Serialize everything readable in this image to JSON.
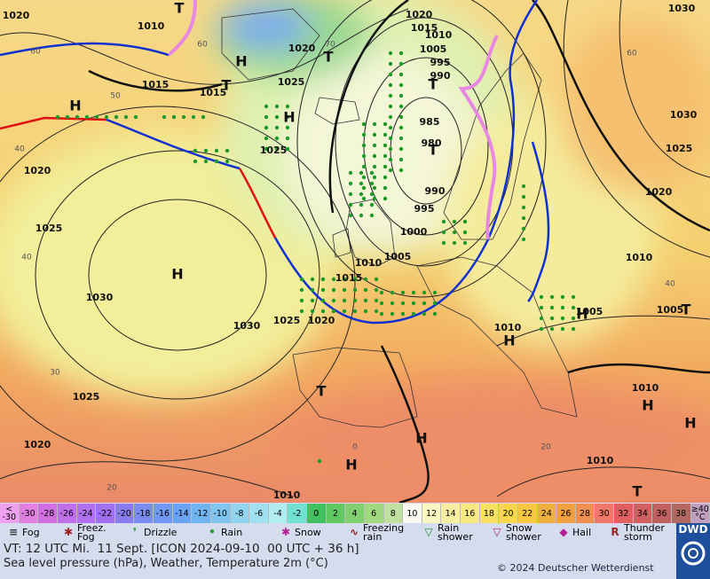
{
  "map": {
    "pressure_labels": [
      "1020",
      "1010",
      "1015",
      "1020",
      "1025",
      "1015",
      "1025",
      "1020",
      "1015",
      "1010",
      "1005",
      "995",
      "990",
      "985",
      "980",
      "990",
      "995",
      "1000",
      "1005",
      "1010",
      "1015",
      "1025",
      "1020",
      "1030",
      "1030",
      "1025",
      "1020",
      "1025",
      "1020",
      "1010",
      "1010",
      "1010",
      "1005",
      "1005",
      "1010",
      "1010",
      "1020",
      "1025",
      "1030",
      "1030"
    ],
    "temperature_labels": [
      "60",
      "50",
      "40",
      "40",
      "30",
      "20",
      "0",
      "20",
      "60",
      "70",
      "60",
      "40"
    ],
    "pressure_centers": [
      "H",
      "H",
      "H",
      "H",
      "H",
      "H",
      "H",
      "H",
      "H",
      "H",
      "T",
      "T",
      "T",
      "T",
      "T",
      "T",
      "T",
      "T"
    ]
  },
  "color_scale": [
    {
      "label": "< -30",
      "color": "#f0a0f0"
    },
    {
      "label": "-30",
      "color": "#e080e0"
    },
    {
      "label": "-28",
      "color": "#d070e0"
    },
    {
      "label": "-26",
      "color": "#c070e8"
    },
    {
      "label": "-24",
      "color": "#b070f0"
    },
    {
      "label": "-22",
      "color": "#a070f0"
    },
    {
      "label": "-20",
      "color": "#8a7cf0"
    },
    {
      "label": "-18",
      "color": "#7b8cf0"
    },
    {
      "label": "-16",
      "color": "#7098f0"
    },
    {
      "label": "-14",
      "color": "#6aa4f0"
    },
    {
      "label": "-12",
      "color": "#70b4f0"
    },
    {
      "label": "-10",
      "color": "#80c4f0"
    },
    {
      "label": "-8",
      "color": "#90d4f0"
    },
    {
      "label": "-6",
      "color": "#a0e0f0"
    },
    {
      "label": "-4",
      "color": "#b0ecf0"
    },
    {
      "label": "-2",
      "color": "#70e0d0"
    },
    {
      "label": "0",
      "color": "#40c060"
    },
    {
      "label": "2",
      "color": "#60c860"
    },
    {
      "label": "4",
      "color": "#80d070"
    },
    {
      "label": "6",
      "color": "#a0d880"
    },
    {
      "label": "8",
      "color": "#c0e0a0"
    },
    {
      "label": "10",
      "color": "#f8f8f0"
    },
    {
      "label": "12",
      "color": "#f8f8c0"
    },
    {
      "label": "14",
      "color": "#f8f0a0"
    },
    {
      "label": "16",
      "color": "#f8e880"
    },
    {
      "label": "18",
      "color": "#f8e060"
    },
    {
      "label": "20",
      "color": "#f8d848"
    },
    {
      "label": "22",
      "color": "#f8c840"
    },
    {
      "label": "24",
      "color": "#f0b040"
    },
    {
      "label": "26",
      "color": "#f0a040"
    },
    {
      "label": "28",
      "color": "#f09050"
    },
    {
      "label": "30",
      "color": "#f07868"
    },
    {
      "label": "32",
      "color": "#e06060"
    },
    {
      "label": "34",
      "color": "#d06060"
    },
    {
      "label": "36",
      "color": "#c06060"
    },
    {
      "label": "38",
      "color": "#b06860"
    },
    {
      "label": "≥40 °C",
      "color": "#c0a0c0"
    }
  ],
  "legend": [
    "Fog",
    "Freez. Fog",
    "Drizzle",
    "Rain",
    "Snow",
    "Freezing rain",
    "Rain shower",
    "Snow shower",
    "Hail",
    "Thunder storm"
  ],
  "footer": {
    "valid_time": "VT: 12 UTC Mi.  11 Sept. [ICON 2024-09-10  00 UTC + 36 h]",
    "description": "Sea level pressure (hPa), Weather, Temperature 2m (°C)",
    "copyright": "© 2024 Deutscher Wetterdienst",
    "logo": "DWD"
  }
}
